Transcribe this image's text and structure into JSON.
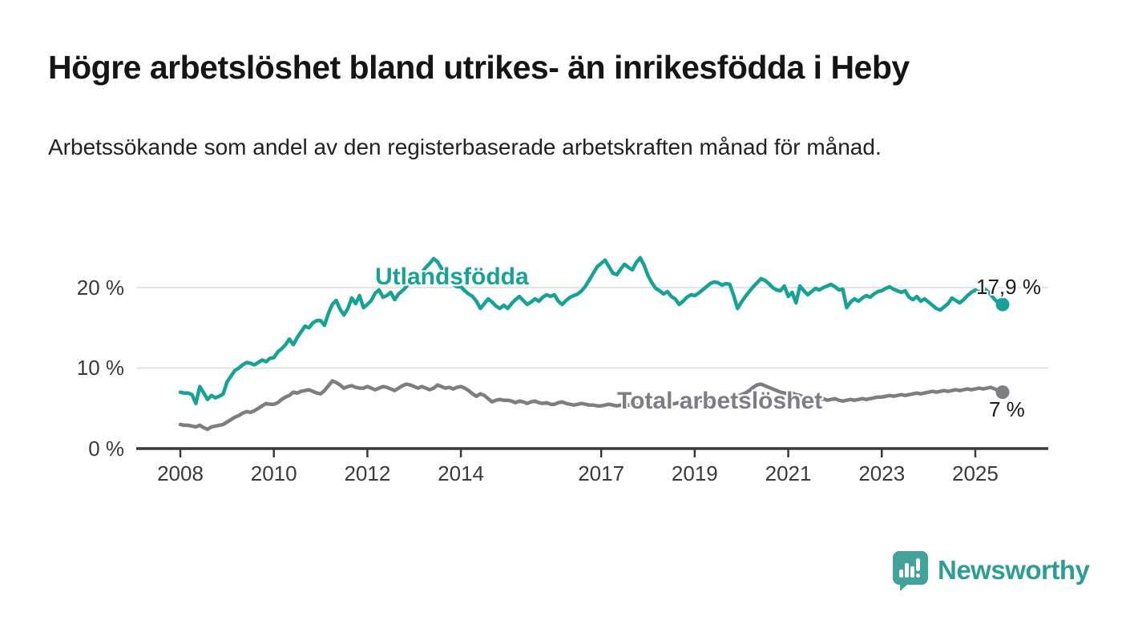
{
  "title": "Högre arbetslöshet bland utrikes- än inrikesfödda i Heby",
  "subtitle": "Arbetssökande som andel av den registerbaserade arbetskraften månad för månad.",
  "branding": {
    "name": "Newsworthy",
    "icon": "newsworthy-speech-bubble-bar-chart-icon",
    "icon_color": "#43a39b",
    "text_color": "#2f9c95"
  },
  "colors": {
    "foreign_born_line": "#16a294",
    "total_line": "#7d7d82",
    "grid": "#dcdcdc",
    "axis": "#3a3a3a",
    "title_text": "#151515"
  },
  "chart_data": {
    "type": "line",
    "frequency": "monthly",
    "x_start": "2008-01",
    "x_end": "2025-08",
    "grid": "horizontal",
    "ylim": [
      0,
      24
    ],
    "y_ticks": [
      "0 %",
      "10 %",
      "20 %"
    ],
    "y_tick_values": [
      0,
      10,
      20
    ],
    "x_tick_labels": [
      "2008",
      "2010",
      "2012",
      "2014",
      "2017",
      "2019",
      "2021",
      "2023",
      "2025"
    ],
    "x_tick_years": [
      2008,
      2010,
      2012,
      2014,
      2017,
      2019,
      2021,
      2023,
      2025
    ],
    "series": [
      {
        "name": "Utlandsfödda",
        "color": "#16a294",
        "end_value": 17.9,
        "end_label": "17,9 %",
        "values": [
          7.0,
          6.9,
          6.9,
          6.7,
          5.6,
          7.7,
          6.9,
          6.1,
          6.6,
          6.3,
          6.5,
          6.8,
          8.3,
          9.0,
          9.7,
          10.0,
          10.4,
          10.7,
          10.6,
          10.4,
          10.7,
          11.0,
          10.8,
          11.2,
          11.3,
          12.0,
          12.4,
          12.9,
          13.6,
          12.9,
          13.8,
          14.5,
          15.2,
          15.0,
          15.6,
          15.9,
          15.9,
          15.3,
          16.8,
          17.9,
          18.4,
          17.3,
          16.6,
          17.4,
          18.7,
          18.0,
          19.0,
          17.5,
          17.9,
          18.4,
          19.3,
          19.7,
          18.8,
          19.0,
          19.4,
          18.5,
          19.2,
          19.6,
          20.1,
          20.9,
          20.6,
          21.2,
          21.9,
          22.5,
          23.0,
          23.6,
          23.2,
          22.4,
          21.6,
          21.0,
          20.4,
          20.1,
          20.1,
          19.6,
          19.2,
          18.9,
          18.3,
          17.4,
          18.0,
          18.6,
          18.2,
          17.7,
          17.4,
          17.8,
          17.4,
          18.0,
          18.5,
          18.9,
          18.4,
          17.9,
          18.2,
          18.6,
          18.3,
          18.8,
          19.1,
          18.9,
          19.1,
          18.3,
          17.9,
          18.4,
          18.8,
          19.0,
          19.2,
          19.6,
          20.2,
          21.0,
          21.8,
          22.6,
          23.0,
          23.4,
          22.6,
          21.8,
          21.6,
          22.3,
          22.9,
          22.5,
          22.2,
          23.1,
          23.7,
          22.8,
          21.5,
          20.6,
          19.9,
          19.6,
          19.2,
          19.5,
          18.9,
          18.6,
          17.9,
          18.3,
          18.8,
          19.1,
          19.0,
          19.3,
          19.7,
          20.1,
          20.5,
          20.7,
          20.6,
          20.3,
          20.5,
          20.4,
          19.0,
          17.4,
          18.2,
          18.9,
          19.5,
          20.1,
          20.6,
          21.1,
          20.9,
          20.5,
          20.0,
          19.7,
          19.6,
          20.2,
          18.9,
          19.4,
          18.1,
          20.2,
          19.6,
          19.1,
          19.5,
          19.9,
          19.7,
          20.0,
          20.2,
          20.4,
          20.1,
          19.7,
          19.8,
          17.5,
          18.2,
          18.6,
          18.3,
          18.7,
          19.0,
          18.8,
          19.2,
          19.5,
          19.6,
          19.9,
          20.1,
          19.8,
          19.6,
          19.4,
          19.6,
          18.8,
          18.5,
          18.9,
          18.3,
          18.6,
          18.2,
          17.8,
          17.4,
          17.2,
          17.6,
          18.0,
          18.7,
          18.4,
          18.1,
          18.5,
          19.0,
          19.4,
          19.7,
          19.4,
          19.9,
          19.6,
          19.1,
          18.5,
          18.1,
          17.9
        ]
      },
      {
        "name": "Total arbetslöshet",
        "color": "#7d7d82",
        "end_value": 7.0,
        "end_label": "7 %",
        "values": [
          3.0,
          2.9,
          2.9,
          2.8,
          2.7,
          2.9,
          2.6,
          2.4,
          2.7,
          2.8,
          2.9,
          3.0,
          3.3,
          3.6,
          3.9,
          4.1,
          4.4,
          4.6,
          4.5,
          4.7,
          5.0,
          5.3,
          5.6,
          5.5,
          5.5,
          5.7,
          6.1,
          6.4,
          6.6,
          7.0,
          6.9,
          7.1,
          7.2,
          7.3,
          7.1,
          6.9,
          6.8,
          7.2,
          7.8,
          8.4,
          8.2,
          7.9,
          7.5,
          7.7,
          7.8,
          7.6,
          7.5,
          7.5,
          7.7,
          7.5,
          7.3,
          7.5,
          7.7,
          7.6,
          7.4,
          7.2,
          7.5,
          7.8,
          8.0,
          7.9,
          7.7,
          7.5,
          7.7,
          7.5,
          7.3,
          7.5,
          7.9,
          7.7,
          7.5,
          7.6,
          7.4,
          7.6,
          7.7,
          7.5,
          7.2,
          6.8,
          6.5,
          6.8,
          6.6,
          6.2,
          5.8,
          6.0,
          6.1,
          6.0,
          6.0,
          5.9,
          5.7,
          5.9,
          5.8,
          5.6,
          5.8,
          5.9,
          5.7,
          5.6,
          5.7,
          5.5,
          5.5,
          5.7,
          5.8,
          5.6,
          5.5,
          5.4,
          5.5,
          5.6,
          5.5,
          5.4,
          5.4,
          5.3,
          5.3,
          5.4,
          5.5,
          5.4,
          5.3,
          5.4,
          5.5,
          5.4,
          5.5,
          5.4,
          5.5,
          5.5,
          5.5,
          5.4,
          5.5,
          5.6,
          5.5,
          5.6,
          5.5,
          5.6,
          5.7,
          5.6,
          5.7,
          5.8,
          5.8,
          5.9,
          6.0,
          5.9,
          6.0,
          6.1,
          6.2,
          6.1,
          6.2,
          6.3,
          6.4,
          6.5,
          6.7,
          6.9,
          7.2,
          7.6,
          7.9,
          8.0,
          7.8,
          7.6,
          7.4,
          7.2,
          7.0,
          6.9,
          6.8,
          6.9,
          6.7,
          6.6,
          6.4,
          6.5,
          6.3,
          6.2,
          6.1,
          6.2,
          6.0,
          6.1,
          6.2,
          6.0,
          5.9,
          6.0,
          6.1,
          6.0,
          6.1,
          6.2,
          6.1,
          6.2,
          6.3,
          6.4,
          6.4,
          6.5,
          6.6,
          6.5,
          6.6,
          6.7,
          6.6,
          6.7,
          6.8,
          6.9,
          6.8,
          6.9,
          7.0,
          7.1,
          7.0,
          7.1,
          7.2,
          7.1,
          7.2,
          7.3,
          7.2,
          7.3,
          7.4,
          7.3,
          7.4,
          7.5,
          7.4,
          7.5,
          7.6,
          7.4,
          7.2,
          7.0
        ]
      }
    ]
  }
}
